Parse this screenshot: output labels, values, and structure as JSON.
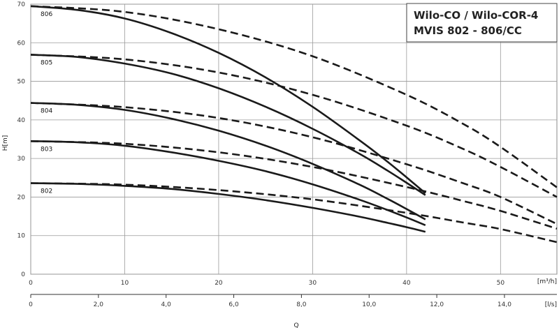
{
  "chart_data": {
    "type": "line",
    "title": [
      "Wilo-CO / Wilo-COR-4",
      "MVIS 802 - 806/CC"
    ],
    "ylabel": "H[m]",
    "xlabel": "Q",
    "ylim": [
      0,
      70
    ],
    "y_ticks": [
      0,
      10,
      20,
      30,
      40,
      50,
      60,
      70
    ],
    "x_m3h": {
      "unit": "[m³/h]",
      "lim": [
        0,
        56
      ],
      "ticks": [
        0,
        10,
        20,
        30,
        40,
        50
      ]
    },
    "x_ls": {
      "unit": "[l/s]",
      "lim": [
        0,
        15.55
      ],
      "ticks": [
        "0",
        "2,0",
        "4,0",
        "6,0",
        "8,0",
        "10,0",
        "12,0",
        "14,0"
      ]
    },
    "grid": true,
    "series": [
      {
        "name": "806",
        "style": "solid",
        "x": [
          0,
          5,
          10,
          15,
          20,
          25,
          30,
          35,
          38,
          40,
          42
        ],
        "y": [
          69.5,
          68.5,
          66.3,
          62.5,
          57.4,
          51.0,
          43.4,
          34.7,
          29.1,
          25.1,
          21.0
        ]
      },
      {
        "name": "805",
        "style": "solid",
        "x": [
          0,
          5,
          10,
          15,
          20,
          25,
          30,
          35,
          38,
          40,
          42
        ],
        "y": [
          56.9,
          56.3,
          54.6,
          52.0,
          48.2,
          43.4,
          37.7,
          31.2,
          26.8,
          23.7,
          20.5
        ]
      },
      {
        "name": "804",
        "style": "solid",
        "x": [
          0,
          5,
          10,
          15,
          20,
          25,
          30,
          35,
          38,
          40,
          42
        ],
        "y": [
          44.4,
          43.9,
          42.6,
          40.3,
          37.2,
          33.3,
          28.6,
          23.2,
          19.5,
          16.9,
          14.2
        ]
      },
      {
        "name": "803",
        "style": "solid",
        "x": [
          0,
          5,
          10,
          15,
          20,
          25,
          30,
          35,
          38,
          40,
          42
        ],
        "y": [
          34.5,
          34.2,
          33.3,
          31.6,
          29.4,
          26.7,
          23.3,
          19.3,
          16.6,
          14.7,
          12.7
        ]
      },
      {
        "name": "802",
        "style": "solid",
        "x": [
          0,
          5,
          10,
          15,
          20,
          25,
          30,
          35,
          38,
          40,
          42
        ],
        "y": [
          23.6,
          23.4,
          22.9,
          22.1,
          20.8,
          19.2,
          17.2,
          14.9,
          13.3,
          12.2,
          11.0
        ]
      },
      {
        "name": "806",
        "style": "dashed",
        "x": [
          0,
          10,
          20,
          30,
          40,
          46,
          50,
          56
        ],
        "y": [
          69.5,
          68.0,
          63.5,
          56.5,
          46.5,
          39.0,
          33.0,
          22.5
        ]
      },
      {
        "name": "805",
        "style": "dashed",
        "x": [
          0,
          10,
          20,
          30,
          40,
          46,
          50,
          56
        ],
        "y": [
          56.9,
          55.7,
          52.3,
          46.5,
          38.5,
          32.5,
          27.8,
          20.0
        ]
      },
      {
        "name": "804",
        "style": "dashed",
        "x": [
          0,
          10,
          20,
          30,
          40,
          46,
          50,
          56
        ],
        "y": [
          44.4,
          43.3,
          40.5,
          35.5,
          28.5,
          23.6,
          20.0,
          13.0
        ]
      },
      {
        "name": "803",
        "style": "dashed",
        "x": [
          0,
          10,
          20,
          30,
          40,
          46,
          50,
          56
        ],
        "y": [
          34.5,
          33.8,
          31.6,
          27.8,
          22.6,
          19.0,
          16.4,
          11.8
        ]
      },
      {
        "name": "802",
        "style": "dashed",
        "x": [
          0,
          10,
          20,
          30,
          40,
          46,
          50,
          56
        ],
        "y": [
          23.6,
          23.2,
          21.8,
          19.4,
          15.9,
          13.4,
          11.7,
          8.3
        ]
      }
    ],
    "curve_labels": [
      "806",
      "805",
      "804",
      "803",
      "802"
    ]
  }
}
